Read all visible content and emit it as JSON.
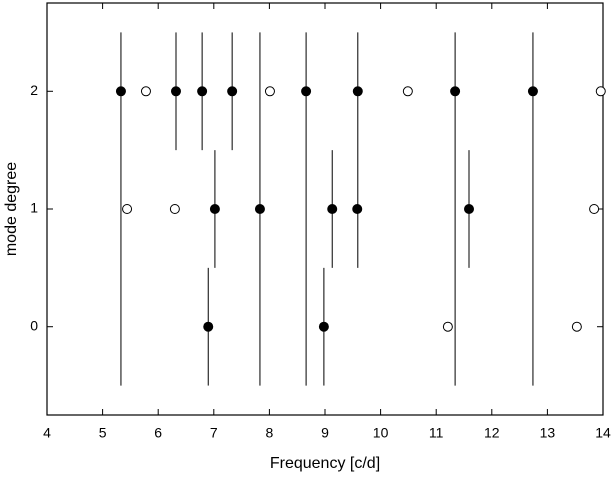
{
  "chart_data": {
    "type": "scatter",
    "x_label": "Frequency [c/d]",
    "y_label": "mode degree",
    "xlim": [
      4,
      14
    ],
    "ylim": [
      -0.75,
      2.75
    ],
    "xticks": [
      4,
      5,
      6,
      7,
      8,
      9,
      10,
      11,
      12,
      13,
      14
    ],
    "yticks": [
      0,
      1,
      2
    ],
    "ranges": {
      "color": "#000000",
      "x": [
        5.33,
        6.32,
        6.79,
        7.33,
        7.83,
        8.66,
        9.59,
        11.34,
        12.74,
        7.02,
        9.13,
        11.59,
        6.9,
        8.98
      ],
      "low": [
        -0.5,
        1.5,
        1.5,
        1.5,
        -0.5,
        -0.5,
        0.5,
        -0.5,
        -0.5,
        0.5,
        0.5,
        0.5,
        -0.5,
        -0.5
      ],
      "high": [
        2.5,
        2.5,
        2.5,
        2.5,
        2.5,
        2.5,
        2.5,
        2.5,
        2.5,
        1.5,
        1.5,
        1.5,
        0.5,
        0.5
      ]
    },
    "series": [
      {
        "color": "#000000",
        "filled": true,
        "x": [
          5.33,
          6.32,
          6.79,
          7.33,
          8.66,
          9.59,
          11.34,
          12.74,
          7.02,
          7.83,
          9.13,
          9.58,
          11.59,
          6.9,
          8.98
        ],
        "y": [
          2,
          2,
          2,
          2,
          2,
          2,
          2,
          2,
          1,
          1,
          1,
          1,
          1,
          0,
          0
        ]
      },
      {
        "color": "#000000",
        "filled": false,
        "x": [
          5.78,
          8.01,
          10.49,
          13.96,
          5.44,
          6.3,
          13.84,
          11.21,
          13.53
        ],
        "y": [
          2,
          2,
          2,
          2,
          1,
          1,
          1,
          0,
          0
        ]
      }
    ]
  }
}
